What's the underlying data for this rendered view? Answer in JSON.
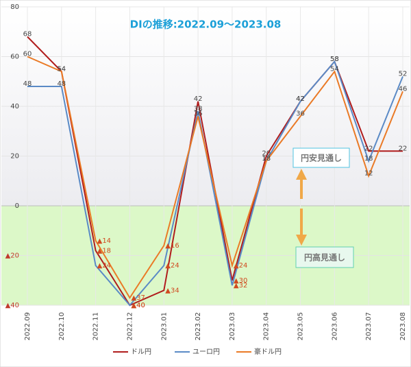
{
  "chart_data": {
    "type": "line",
    "title": "DIの推移:2022.09～2023.08",
    "categories": [
      "2022.09",
      "2022.10",
      "2022.11",
      "2022.12",
      "2023.01",
      "2023.02",
      "2023.03",
      "2023.04",
      "2023.05",
      "2023.06",
      "2023.07",
      "2023.08"
    ],
    "series": [
      {
        "name": "ドル円",
        "color": "#b01c1c",
        "values": [
          68,
          54,
          -18,
          -40,
          -34,
          42,
          -30,
          20,
          42,
          58,
          22,
          22
        ],
        "value_labels": [
          "68",
          "54",
          "▲18",
          "▲40",
          "▲34",
          "42",
          "▲30",
          "20",
          "42",
          "58",
          "22",
          "22"
        ]
      },
      {
        "name": "ユーロ円",
        "color": "#5a8ac6",
        "values": [
          48,
          48,
          -24,
          -40,
          -24,
          38,
          -32,
          18,
          42,
          58,
          18,
          52
        ],
        "value_labels": [
          "48",
          "48",
          "▲24",
          "▲40",
          "▲24",
          "38",
          "▲32",
          "18",
          "42",
          "58",
          "18",
          "52"
        ]
      },
      {
        "name": "豪ドル円",
        "color": "#ea7a26",
        "values": [
          60,
          54,
          -14,
          -37,
          -16,
          36,
          -24,
          18,
          36,
          54,
          12,
          46
        ],
        "value_labels": [
          "60",
          "54",
          "▲14",
          "▲37",
          "▲16",
          "36",
          "▲24",
          "18",
          "36",
          "54",
          "12",
          "46"
        ]
      }
    ],
    "ylim": [
      -40,
      80
    ],
    "yticks": [
      {
        "value": -40,
        "label": "▲40"
      },
      {
        "value": -20,
        "label": "▲20"
      },
      0,
      20,
      40,
      60,
      80
    ],
    "annotations": [
      "円安見通し",
      "円高見通し"
    ],
    "grid": true,
    "legend": "bottom"
  }
}
